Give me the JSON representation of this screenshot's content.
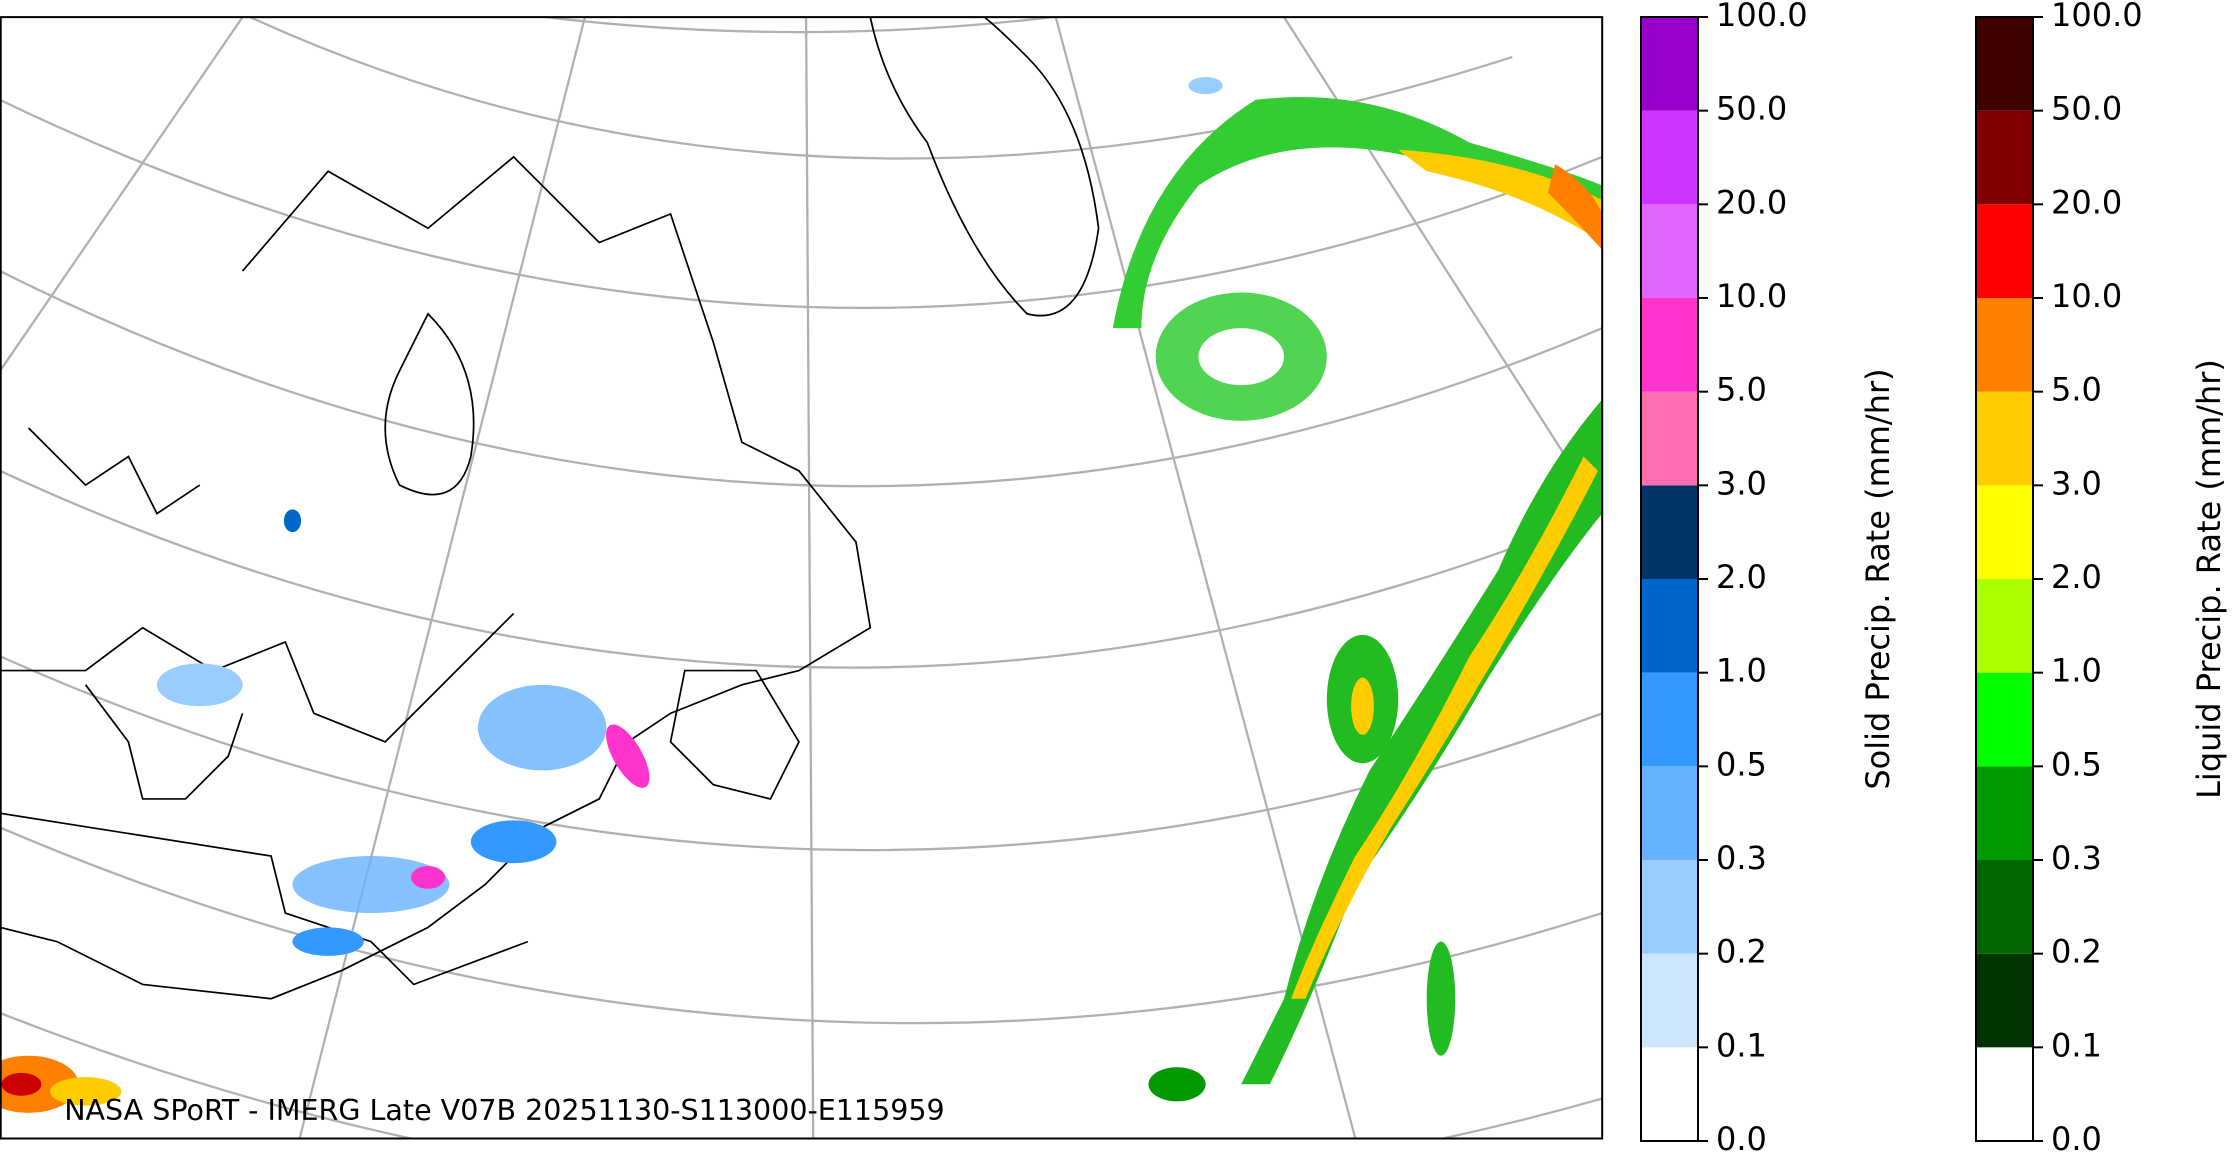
{
  "map": {
    "caption": "NASA SPoRT - IMERG Late V07B 20251130-S113000-E115959"
  },
  "colorbars": [
    {
      "label": "Solid Precip. Rate (mm/hr)",
      "ticks": [
        "0.0",
        "0.1",
        "0.2",
        "0.3",
        "0.5",
        "1.0",
        "2.0",
        "3.0",
        "5.0",
        "10.0",
        "20.0",
        "50.0",
        "100.0"
      ],
      "colors": [
        "#ffffff",
        "#cce6ff",
        "#99ccff",
        "#66b2ff",
        "#3399ff",
        "#0066cc",
        "#003366",
        "#ff6fb0",
        "#ff33cc",
        "#e066ff",
        "#cc33ff",
        "#9900cc"
      ]
    },
    {
      "label": "Liquid Precip. Rate (mm/hr)",
      "ticks": [
        "0.0",
        "0.1",
        "0.2",
        "0.3",
        "0.5",
        "1.0",
        "2.0",
        "3.0",
        "5.0",
        "10.0",
        "20.0",
        "50.0",
        "100.0"
      ],
      "colors": [
        "#ffffff",
        "#003300",
        "#006600",
        "#009900",
        "#00ff00",
        "#aaff00",
        "#ffff00",
        "#ffcc00",
        "#ff8000",
        "#ff0000",
        "#800000",
        "#400000"
      ]
    }
  ]
}
